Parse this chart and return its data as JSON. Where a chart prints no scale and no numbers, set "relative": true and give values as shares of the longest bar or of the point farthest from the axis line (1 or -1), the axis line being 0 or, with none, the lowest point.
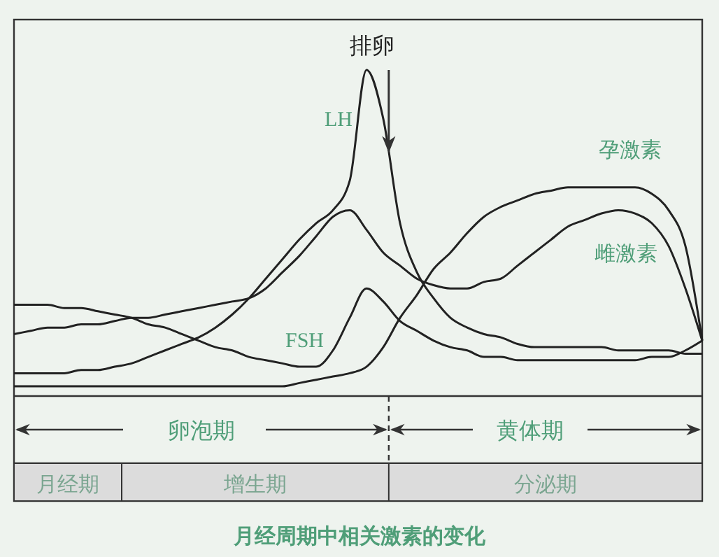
{
  "chart_data": {
    "type": "line",
    "relative": true,
    "title": "月经周期中相关激素的变化",
    "legend": false,
    "line_style": "solid",
    "categories": [
      null,
      null,
      null,
      null,
      null,
      null,
      null,
      null,
      null,
      null,
      null,
      null,
      null,
      null,
      null,
      null,
      null,
      null,
      null,
      null,
      null,
      null,
      null,
      null,
      null,
      null,
      null,
      null,
      null,
      null,
      null,
      null,
      null,
      null,
      null,
      null,
      null,
      null,
      null,
      null,
      null,
      null
    ],
    "series": [
      {
        "name": "LH",
        "color": "#222222",
        "values": [
          0.07,
          0.07,
          0.07,
          0.07,
          0.08,
          0.08,
          0.09,
          0.1,
          0.12,
          0.14,
          0.16,
          0.18,
          0.21,
          0.25,
          0.3,
          0.36,
          0.42,
          0.48,
          0.53,
          0.57,
          0.66,
          1,
          0.85,
          0.53,
          0.38,
          0.3,
          0.24,
          0.21,
          0.19,
          0.18,
          0.16,
          0.15,
          0.15,
          0.15,
          0.15,
          0.15,
          0.14,
          0.14,
          0.14,
          0.14,
          0.13,
          0.13
        ]
      },
      {
        "name": "FSH",
        "color": "#222222",
        "values": [
          0.28,
          0.28,
          0.28,
          0.27,
          0.27,
          0.26,
          0.25,
          0.24,
          0.22,
          0.21,
          0.19,
          0.17,
          0.15,
          0.14,
          0.12,
          0.11,
          0.1,
          0.09,
          0.09,
          0.14,
          0.24,
          0.33,
          0.29,
          0.23,
          0.2,
          0.17,
          0.15,
          0.14,
          0.12,
          0.12,
          0.11,
          0.11,
          0.11,
          0.11,
          0.11,
          0.11,
          0.11,
          0.11,
          0.12,
          0.12,
          0.14,
          0.17
        ]
      },
      {
        "name": "孕激素",
        "color": "#222222",
        "values": [
          0.03,
          0.03,
          0.03,
          0.03,
          0.03,
          0.03,
          0.03,
          0.03,
          0.03,
          0.03,
          0.03,
          0.03,
          0.03,
          0.03,
          0.03,
          0.03,
          0.03,
          0.04,
          0.05,
          0.06,
          0.07,
          0.09,
          0.15,
          0.24,
          0.31,
          0.39,
          0.44,
          0.5,
          0.55,
          0.58,
          0.6,
          0.62,
          0.63,
          0.64,
          0.64,
          0.64,
          0.64,
          0.64,
          0.62,
          0.57,
          0.46,
          0.17
        ]
      },
      {
        "name": "雌激素",
        "color": "#222222",
        "values": [
          0.19,
          0.2,
          0.21,
          0.21,
          0.22,
          0.22,
          0.23,
          0.24,
          0.24,
          0.25,
          0.26,
          0.27,
          0.28,
          0.29,
          0.3,
          0.33,
          0.38,
          0.43,
          0.49,
          0.55,
          0.57,
          0.51,
          0.44,
          0.4,
          0.36,
          0.34,
          0.33,
          0.33,
          0.35,
          0.36,
          0.4,
          0.44,
          0.48,
          0.52,
          0.54,
          0.56,
          0.57,
          0.56,
          0.53,
          0.46,
          0.33,
          0.17
        ]
      }
    ],
    "annotations": [
      "排卵",
      "卵泡期",
      "黄体期",
      "月经期",
      "增生期",
      "分泌期"
    ]
  }
}
